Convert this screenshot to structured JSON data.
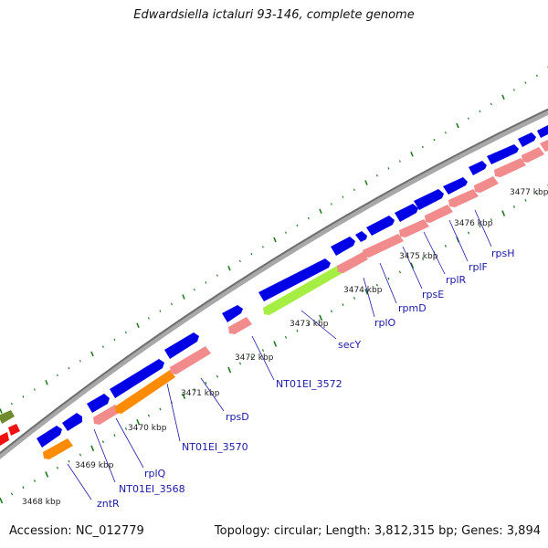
{
  "title": "Edwardsiella ictaluri 93-146, complete genome",
  "footer": {
    "accession": "Accession: NC_012779",
    "summary": "Topology: circular; Length: 3,812,315 bp; Genes: 3,894"
  },
  "colors": {
    "forward_gene": "#0000e6",
    "reverse_gene": "#f28c8c",
    "orange_gene": "#ff8c00",
    "secY_gene": "#a6ee44",
    "red_gene": "#ee1111",
    "olive_gene": "#6e8b2e",
    "backbone": "#8a8a8a",
    "tick": "#1f7a1f",
    "label": "#1a1aa6"
  },
  "kbp_ticks": [
    "3468 kbp",
    "3469 kbp",
    "3470 kbp",
    "3471 kbp",
    "3472 kbp",
    "3473 kbp",
    "3474 kbp",
    "3475 kbp",
    "3476 kbp",
    "3477 kbp"
  ],
  "gene_labels": [
    "zntR",
    "NT01EI_3568",
    "rplQ",
    "NT01EI_3570",
    "rpsD",
    "NT01EI_3572",
    "secY",
    "rplO",
    "rpmD",
    "rpsE",
    "rplR",
    "rplF",
    "rpsH"
  ]
}
